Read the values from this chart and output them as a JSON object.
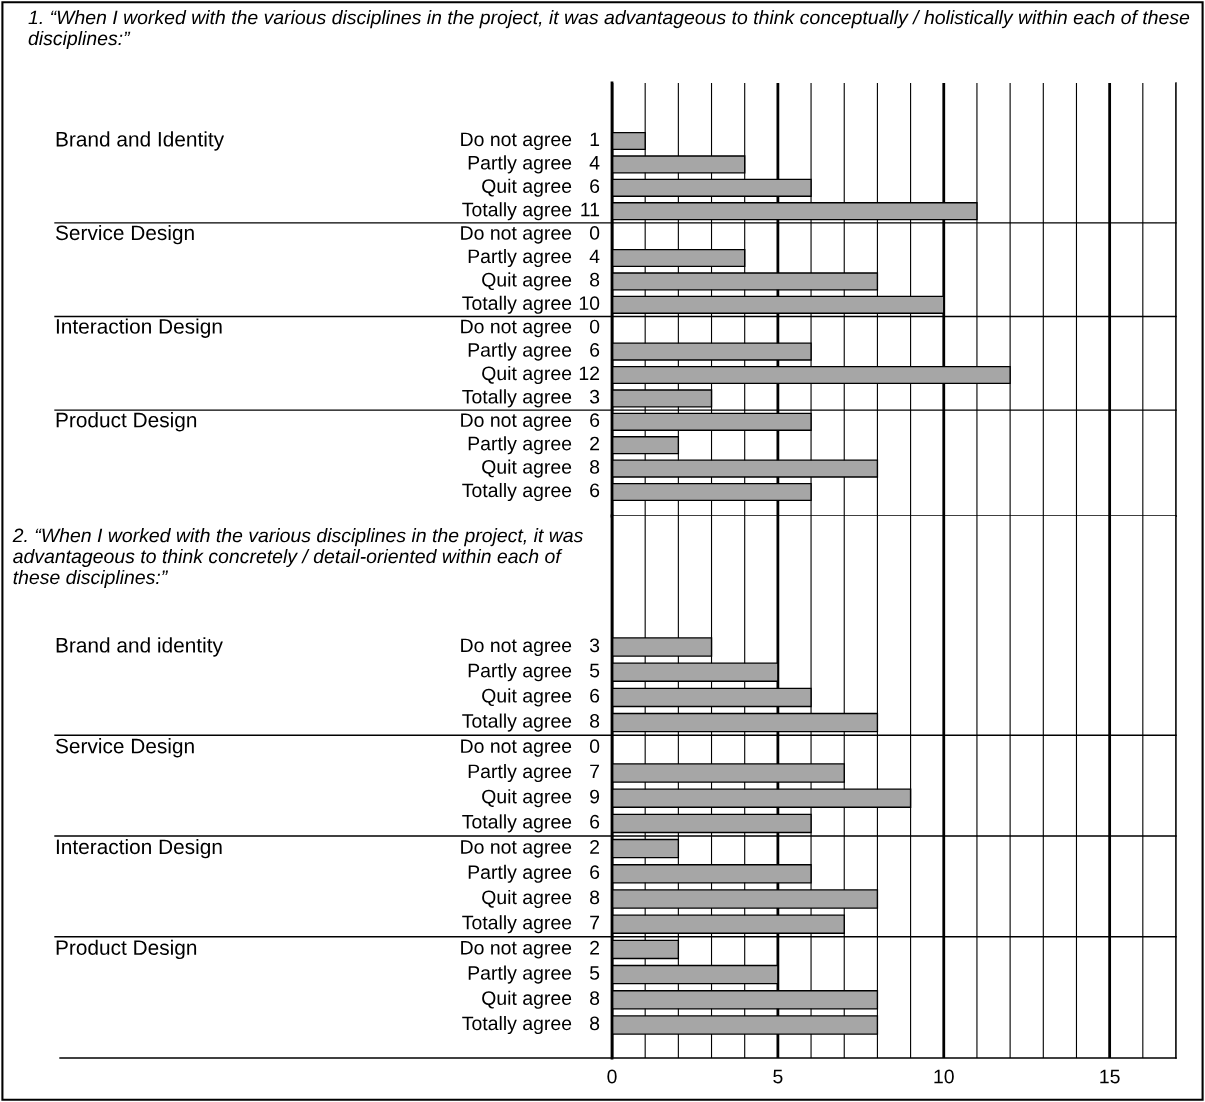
{
  "chart_data": [
    {
      "type": "bar",
      "orientation": "horizontal",
      "title": "1. “When I worked with the various disciplines in the project, it was advantageous to think conceptually / holistically within each of these disciplines:”",
      "categories": [
        "Do not agree",
        "Partly agree",
        "Quit agree",
        "Totally agree",
        "Do not agree",
        "Partly agree",
        "Quit agree",
        "Totally agree",
        "Do not agree",
        "Partly agree",
        "Quit agree",
        "Totally agree",
        "Do not agree",
        "Partly agree",
        "Quit agree",
        "Totally agree"
      ],
      "values": [
        1,
        4,
        6,
        11,
        0,
        4,
        8,
        10,
        0,
        6,
        12,
        3,
        6,
        2,
        8,
        6
      ],
      "annotations": [
        "Brand and Identity",
        "Service Design",
        "Interaction Design",
        "Product Design"
      ],
      "color": "#a6a6a6",
      "data_labels": true,
      "grid": "x",
      "tick_labels": "y",
      "xlim": [
        0,
        17
      ],
      "xticks": [
        0,
        {
          "value": 1,
          "label": null
        },
        {
          "value": 2,
          "label": null
        },
        {
          "value": 3,
          "label": null
        },
        {
          "value": 4,
          "label": null
        },
        5,
        {
          "value": 6,
          "label": null
        },
        {
          "value": 7,
          "label": null
        },
        {
          "value": 8,
          "label": null
        },
        {
          "value": 9,
          "label": null
        },
        10,
        {
          "value": 11,
          "label": null
        },
        {
          "value": 12,
          "label": null
        },
        {
          "value": 13,
          "label": null
        },
        {
          "value": 14,
          "label": null
        },
        15,
        {
          "value": 16,
          "label": null
        },
        {
          "value": 17,
          "label": null
        }
      ]
    },
    {
      "type": "bar",
      "orientation": "horizontal",
      "title": "2. “When I worked with the various disciplines in the project, it was advantageous to think concretely / detail-oriented within each of these disciplines:”",
      "categories": [
        "Do not agree",
        "Partly agree",
        "Quit agree",
        "Totally agree",
        "Do not agree",
        "Partly agree",
        "Quit agree",
        "Totally agree",
        "Do not agree",
        "Partly agree",
        "Quit agree",
        "Totally agree",
        "Do not agree",
        "Partly agree",
        "Quit agree",
        "Totally agree"
      ],
      "values": [
        3,
        5,
        6,
        8,
        0,
        7,
        9,
        6,
        2,
        6,
        8,
        7,
        2,
        5,
        8,
        8
      ],
      "annotations": [
        "Brand and identity",
        "Service Design",
        "Interaction Design",
        "Product Design"
      ],
      "color": "#a6a6a6",
      "data_labels": true,
      "grid": "x",
      "xlim": [
        0,
        17
      ],
      "xticks": [
        0,
        {
          "value": 1,
          "label": null
        },
        {
          "value": 2,
          "label": null
        },
        {
          "value": 3,
          "label": null
        },
        {
          "value": 4,
          "label": null
        },
        5,
        {
          "value": 6,
          "label": null
        },
        {
          "value": 7,
          "label": null
        },
        {
          "value": 8,
          "label": null
        },
        {
          "value": 9,
          "label": null
        },
        10,
        {
          "value": 11,
          "label": null
        },
        {
          "value": 12,
          "label": null
        },
        {
          "value": 13,
          "label": null
        },
        {
          "value": 14,
          "label": null
        },
        15,
        {
          "value": 16,
          "label": null
        },
        {
          "value": 17,
          "label": null
        }
      ]
    }
  ]
}
